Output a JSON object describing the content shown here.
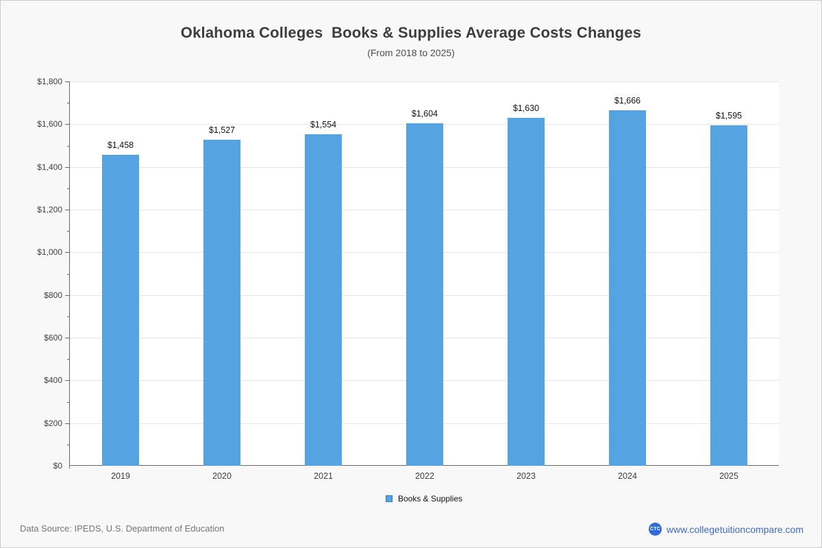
{
  "header": {
    "title": "Oklahoma Colleges  Books & Supplies Average Costs Changes",
    "subtitle": "(From 2018 to 2025)"
  },
  "chart_data": {
    "type": "bar",
    "title": "Oklahoma Colleges Books & Supplies Average Costs Changes",
    "categories": [
      "2019",
      "2020",
      "2021",
      "2022",
      "2023",
      "2024",
      "2025"
    ],
    "values": [
      1458,
      1527,
      1554,
      1604,
      1630,
      1666,
      1595
    ],
    "value_labels": [
      "$1,458",
      "$1,527",
      "$1,554",
      "$1,604",
      "$1,630",
      "$1,666",
      "$1,595"
    ],
    "xlabel": "",
    "ylabel": "",
    "ylim": [
      0,
      1800
    ],
    "ytick_step": 200,
    "yminor_step": 100,
    "ytick_labels": [
      "$0",
      "$200",
      "$400",
      "$600",
      "$800",
      "$1,000",
      "$1,200",
      "$1,400",
      "$1,600",
      "$1,800"
    ],
    "grid": true,
    "legend": {
      "label": "Books & Supplies",
      "position": "bottom"
    },
    "bar_color": "#55a3e0"
  },
  "footer": {
    "source": "Data Source: IPEDS, U.S. Department of Education",
    "logo_text": "CTC",
    "website": "www.collegetuitioncompare.com"
  },
  "colors": {
    "bar": "#55a3e0",
    "legend_swatch_border": "#3d7ab8",
    "background": "#f8f8f8",
    "plot_background": "#ffffff",
    "gridline": "#e5e5e5",
    "axis": "#666666",
    "title_text": "#3d3d3d",
    "brand_blue": "#2f6cd8",
    "url_blue": "#3f6ad1"
  }
}
